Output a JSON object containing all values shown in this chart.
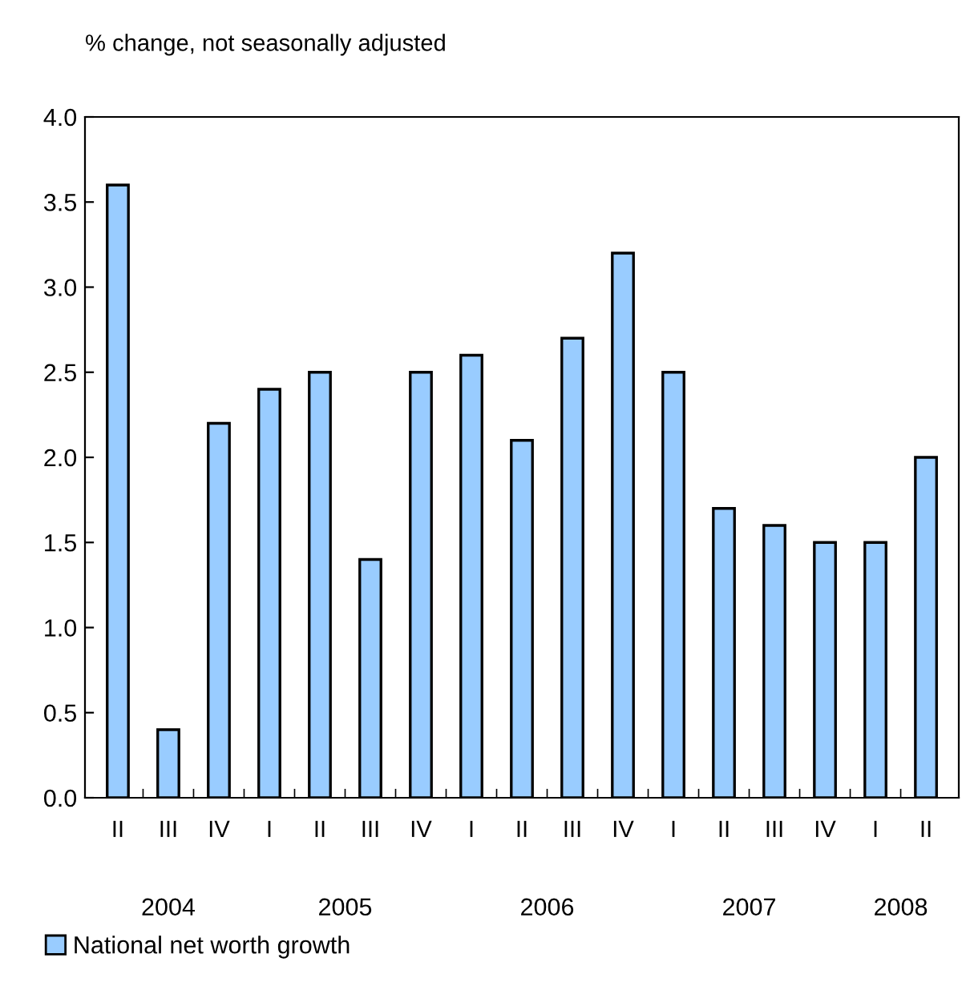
{
  "chart_data": {
    "type": "bar",
    "ylabel": "% change, not seasonally adjusted",
    "categories": [
      "II",
      "III",
      "IV",
      "I",
      "II",
      "III",
      "IV",
      "I",
      "II",
      "III",
      "IV",
      "I",
      "II",
      "III",
      "IV",
      "I",
      "II"
    ],
    "series": [
      {
        "name": "National net worth growth",
        "color": "#99ccff",
        "values": [
          3.6,
          0.4,
          2.2,
          2.4,
          2.5,
          1.4,
          2.5,
          2.6,
          2.1,
          2.7,
          3.2,
          2.5,
          1.7,
          1.6,
          1.5,
          1.5,
          2.0
        ]
      }
    ],
    "ylim": [
      0,
      4
    ],
    "yticks": [
      {
        "value": 0,
        "label": "0.0"
      },
      {
        "value": 0.5,
        "label": "0.5"
      },
      {
        "value": 1,
        "label": "1.0"
      },
      {
        "value": 1.5,
        "label": "1.5"
      },
      {
        "value": 2,
        "label": "2.0"
      },
      {
        "value": 2.5,
        "label": "2.5"
      },
      {
        "value": 3,
        "label": "3.0"
      },
      {
        "value": 3.5,
        "label": "3.5"
      },
      {
        "value": 4,
        "label": "4.0"
      }
    ],
    "annotations": [
      "2004",
      "2005",
      "2006",
      "2007",
      "2008"
    ],
    "grid": false,
    "legend": "bottom left"
  }
}
